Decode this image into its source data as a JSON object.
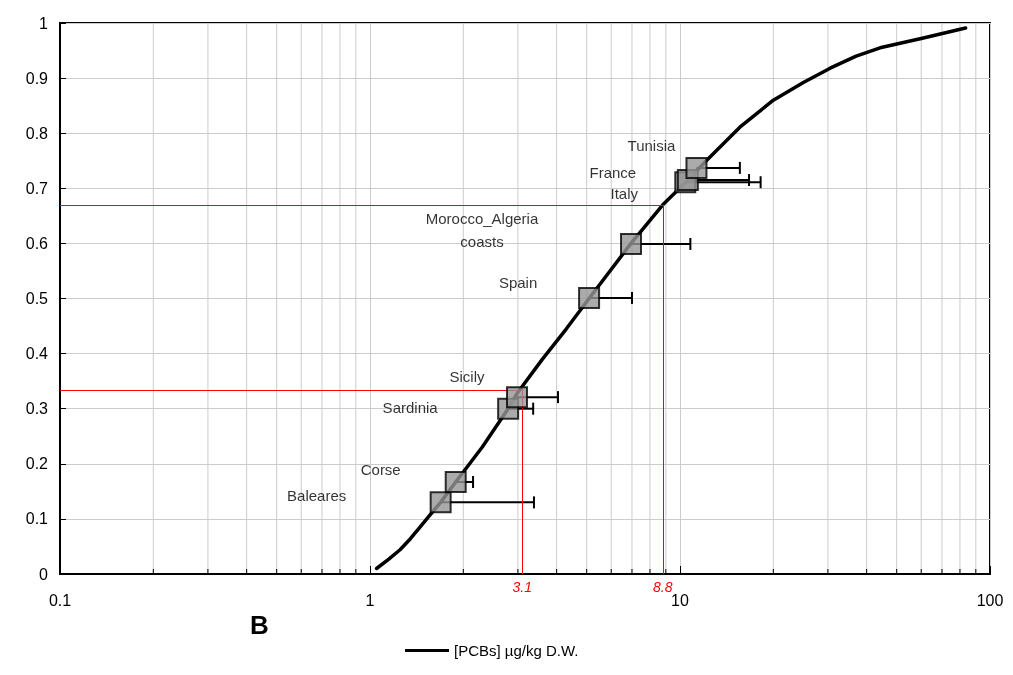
{
  "chart_data": {
    "type": "line",
    "xlabel": null,
    "series": [
      {
        "name": "[PCBs] µg/kg D.W.",
        "color": "#000000",
        "marker": "none",
        "x": [
          1.05,
          1.15,
          1.25,
          1.35,
          1.45,
          1.55,
          1.69,
          1.89,
          2.3,
          2.79,
          3.0,
          3.6,
          4.3,
          5.09,
          6.95,
          8.8,
          10.4,
          12.2,
          15.6,
          20,
          25,
          30.5,
          37,
          44.2,
          60,
          83.4
        ],
        "values": [
          0.01,
          0.027,
          0.044,
          0.064,
          0.085,
          0.105,
          0.13,
          0.167,
          0.23,
          0.3,
          0.33,
          0.39,
          0.445,
          0.5,
          0.6,
          0.67,
          0.71,
          0.751,
          0.811,
          0.86,
          0.892,
          0.918,
          0.94,
          0.955,
          0.972,
          0.991
        ]
      },
      {
        "type": "scatter",
        "color": "#969696",
        "marker": "square",
        "x": [
          1.69,
          1.89,
          2.79,
          2.98,
          5.09,
          6.95,
          10.4,
          10.6,
          11.3
        ],
        "values": [
          0.13,
          0.167,
          0.3,
          0.321,
          0.501,
          0.599,
          0.711,
          0.715,
          0.737
        ],
        "xerrors": [
          [
            1.69,
            3.38
          ],
          [
            1.89,
            2.15
          ],
          [
            2.79,
            3.36
          ],
          [
            2.98,
            4.04
          ],
          [
            5.09,
            7.0
          ],
          [
            6.95,
            10.8
          ],
          [
            10.4,
            18.2
          ],
          [
            10.6,
            16.7
          ],
          [
            11.3,
            15.6
          ]
        ]
      }
    ],
    "xlim": [
      0.1,
      100
    ],
    "xticks": [
      0.1,
      1,
      10,
      100
    ],
    "log": "x",
    "ylim": [
      0,
      1
    ],
    "yticks": [
      0,
      0.1,
      0.2,
      0.3,
      0.4,
      0.5,
      0.6,
      0.7,
      0.8,
      0.9,
      1
    ],
    "grid": true,
    "legend": "bottom",
    "ref_lines": [
      {
        "axis": "x",
        "value": 3.1,
        "label": "3.1",
        "color": "#ff0000"
      },
      {
        "axis": "x",
        "value": 8.8,
        "label": "8.8",
        "color": "#ff0000"
      },
      {
        "axis": "y",
        "value": 0.333,
        "label": null,
        "color": "#ff0000"
      },
      {
        "axis": "y",
        "value": 0.67,
        "label": null,
        "color": "#ff0000"
      }
    ],
    "annotations": [
      "Baleares",
      "Corse",
      "Sardinia",
      "Sicily",
      "Spain",
      "Morocco_Algeria\ncoasts",
      "Italy",
      "France",
      "Tunisia",
      "B"
    ]
  }
}
